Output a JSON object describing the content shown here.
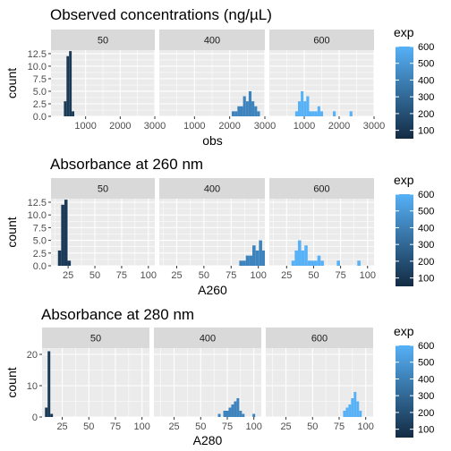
{
  "chart_data": [
    {
      "type": "bar",
      "title": "Observed concentrations (ng/µL)",
      "xlabel": "obs",
      "ylabel": "count",
      "facets": [
        "50",
        "400",
        "600"
      ],
      "xlim": [
        0,
        3000
      ],
      "xticks": [
        1000,
        2000,
        3000
      ],
      "ylim": [
        0,
        13.2
      ],
      "yticks": [
        0.0,
        2.5,
        5.0,
        7.5,
        10.0,
        12.5
      ],
      "ytick_labels": [
        "0.0",
        "2.5",
        "5.0",
        "7.5",
        "10.0",
        "12.5"
      ],
      "legend": {
        "title": "exp",
        "ticks": [
          100,
          200,
          300,
          400,
          500,
          600
        ],
        "range": [
          50,
          600
        ],
        "position": "right"
      },
      "series": [
        {
          "exp": 50,
          "color": "#1b3a57",
          "bins": [
            [
              410,
              3
            ],
            [
              485,
              12
            ],
            [
              560,
              13
            ],
            [
              635,
              1
            ]
          ]
        },
        {
          "exp": 400,
          "color": "#3d83bd",
          "bins": [
            [
              2100,
              1
            ],
            [
              2180,
              1
            ],
            [
              2260,
              2
            ],
            [
              2340,
              2
            ],
            [
              2420,
              4
            ],
            [
              2500,
              3
            ],
            [
              2580,
              5
            ],
            [
              2660,
              3
            ],
            [
              2740,
              2
            ],
            [
              2820,
              1
            ]
          ]
        },
        {
          "exp": 600,
          "color": "#56b1f7",
          "bins": [
            [
              780,
              1
            ],
            [
              860,
              3
            ],
            [
              940,
              5
            ],
            [
              1020,
              3
            ],
            [
              1100,
              4
            ],
            [
              1180,
              1
            ],
            [
              1260,
              1
            ],
            [
              1340,
              1
            ],
            [
              1420,
              2
            ],
            [
              1500,
              1
            ],
            [
              1860,
              1
            ],
            [
              2340,
              1
            ]
          ]
        }
      ]
    },
    {
      "type": "bar",
      "title": "Absorbance at 260 nm",
      "xlabel": "A260",
      "ylabel": "count",
      "facets": [
        "50",
        "400",
        "600"
      ],
      "xlim": [
        9,
        106
      ],
      "xticks": [
        25,
        50,
        75,
        100
      ],
      "ylim": [
        0,
        13.2
      ],
      "yticks": [
        0.0,
        2.5,
        5.0,
        7.5,
        10.0,
        12.5
      ],
      "ytick_labels": [
        "0.0",
        "2.5",
        "5.0",
        "7.5",
        "10.0",
        "12.5"
      ],
      "legend": {
        "title": "exp",
        "ticks": [
          100,
          200,
          300,
          400,
          500,
          600
        ],
        "range": [
          50,
          600
        ],
        "position": "right"
      },
      "series": [
        {
          "exp": 50,
          "color": "#1b3a57",
          "bins": [
            [
              17,
              3
            ],
            [
              20,
              12
            ],
            [
              23,
              13
            ],
            [
              26,
              1
            ]
          ]
        },
        {
          "exp": 400,
          "color": "#3d83bd",
          "bins": [
            [
              84,
              1
            ],
            [
              87,
              1
            ],
            [
              90,
              2
            ],
            [
              93,
              2
            ],
            [
              96,
              4
            ],
            [
              99,
              3
            ],
            [
              102,
              5
            ],
            [
              105,
              3
            ],
            [
              108,
              2
            ],
            [
              111,
              1
            ]
          ]
        },
        {
          "exp": 600,
          "color": "#56b1f7",
          "bins": [
            [
              31,
              1
            ],
            [
              34,
              3
            ],
            [
              37,
              5
            ],
            [
              40,
              3
            ],
            [
              43,
              4
            ],
            [
              46,
              1
            ],
            [
              49,
              1
            ],
            [
              52,
              1
            ],
            [
              55,
              2
            ],
            [
              58,
              1
            ],
            [
              73,
              1
            ],
            [
              92,
              1
            ]
          ]
        }
      ]
    },
    {
      "type": "bar",
      "title": "Absorbance at 280 nm",
      "xlabel": "A280",
      "ylabel": "count",
      "facets": [
        "50",
        "400",
        "600"
      ],
      "xlim": [
        6,
        107
      ],
      "xticks": [
        25,
        50,
        75,
        100
      ],
      "ylim": [
        0,
        22
      ],
      "yticks": [
        0,
        10,
        20
      ],
      "ytick_labels": [
        "0",
        "10",
        "20"
      ],
      "legend": {
        "title": "exp",
        "ticks": [
          100,
          200,
          300,
          400,
          500,
          600
        ],
        "range": [
          50,
          600
        ],
        "position": "right"
      },
      "series": [
        {
          "exp": 50,
          "color": "#1b3a57",
          "bins": [
            [
              10,
              3
            ],
            [
              12.5,
              21
            ],
            [
              15,
              1
            ]
          ]
        },
        {
          "exp": 400,
          "color": "#3d83bd",
          "bins": [
            [
              67.5,
              1
            ],
            [
              72.5,
              2
            ],
            [
              75,
              2
            ],
            [
              77.5,
              3
            ],
            [
              80,
              4
            ],
            [
              82.5,
              5
            ],
            [
              85,
              6
            ],
            [
              87.5,
              2
            ],
            [
              90,
              1
            ],
            [
              100,
              1
            ]
          ]
        },
        {
          "exp": 600,
          "color": "#56b1f7",
          "bins": [
            [
              80,
              2
            ],
            [
              82.5,
              3
            ],
            [
              85,
              4
            ],
            [
              87.5,
              6
            ],
            [
              90,
              8
            ],
            [
              92.5,
              5
            ],
            [
              95,
              2
            ]
          ]
        }
      ]
    }
  ]
}
